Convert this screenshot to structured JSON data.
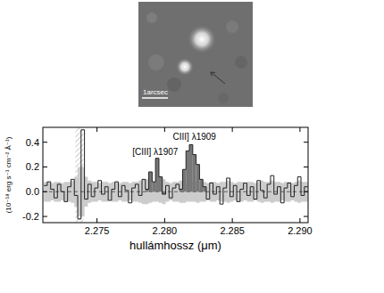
{
  "chart_data": {
    "type": "line",
    "image_label": "1arcsec",
    "x_label": "hullámhossz (μm)",
    "y_label": "(10⁻¹⁸ erg s⁻¹ cm⁻² Å⁻¹)",
    "xlim": [
      2.271,
      2.2906
    ],
    "ylim": [
      -0.25,
      0.52
    ],
    "xticks": [
      2.275,
      {
        "value": 2.28,
        "label": "2.280"
      },
      2.285,
      {
        "value": 2.29,
        "label": "2.290"
      }
    ],
    "yticks": [
      -0.2,
      {
        "value": 0,
        "label": "0.0"
      },
      0.2,
      0.4
    ],
    "line_style": "steps",
    "color": "#222222",
    "x": [
      2.2712,
      2.27145,
      2.2717,
      2.27195,
      2.2722,
      2.27245,
      2.2727,
      2.27295,
      2.2732,
      2.27345,
      2.2737,
      2.27395,
      2.2742,
      2.27445,
      2.2747,
      2.27495,
      2.2752,
      2.27545,
      2.2757,
      2.27595,
      2.2762,
      2.27645,
      2.2767,
      2.27695,
      2.2772,
      2.27745,
      2.2777,
      2.27795,
      2.2782,
      2.27845,
      2.2787,
      2.27895,
      2.2792,
      2.27945,
      2.2797,
      2.27995,
      2.2802,
      2.28045,
      2.2807,
      2.28095,
      2.2812,
      2.28145,
      2.2817,
      2.28195,
      2.2822,
      2.28245,
      2.2827,
      2.28295,
      2.2832,
      2.28345,
      2.2837,
      2.28395,
      2.2842,
      2.28445,
      2.2847,
      2.28495,
      2.2852,
      2.28545,
      2.2857,
      2.28595,
      2.2862,
      2.28645,
      2.2867,
      2.28695,
      2.2872,
      2.28745,
      2.2877,
      2.28795,
      2.2882,
      2.28845,
      2.2887,
      2.28895,
      2.2892,
      2.28945,
      2.2897,
      2.28995,
      2.2902,
      2.29045
    ],
    "values": [
      0.05,
      0.08,
      0.02,
      -0.05,
      0.06,
      0.0,
      -0.08,
      0.04,
      0.1,
      -0.03,
      -0.22,
      0.5,
      -0.06,
      0.06,
      -0.04,
      0.03,
      0.09,
      -0.02,
      0.04,
      -0.07,
      0.02,
      0.08,
      -0.04,
      0.05,
      0.01,
      -0.09,
      0.03,
      0.06,
      -0.03,
      0.1,
      0.02,
      0.16,
      0.08,
      0.27,
      0.12,
      -0.02,
      0.05,
      -0.05,
      0.03,
      0.06,
      0.02,
      0.18,
      0.33,
      0.38,
      0.3,
      0.22,
      0.1,
      0.04,
      -0.06,
      0.07,
      -0.02,
      0.04,
      -0.1,
      0.03,
      0.11,
      -0.04,
      0.05,
      -0.08,
      0.02,
      0.07,
      -0.03,
      0.04,
      -0.06,
      0.09,
      0.01,
      -0.05,
      0.06,
      0.13,
      -0.02,
      0.04,
      -0.09,
      0.03,
      0.07,
      -0.04,
      0.05,
      0.12,
      -0.03,
      0.04
    ],
    "noise": [
      0.08,
      0.08,
      0.07,
      0.08,
      0.08,
      0.07,
      0.08,
      0.08,
      0.09,
      0.12,
      0.2,
      0.2,
      0.12,
      0.09,
      0.08,
      0.08,
      0.07,
      0.08,
      0.08,
      0.07,
      0.08,
      0.08,
      0.07,
      0.08,
      0.08,
      0.07,
      0.08,
      0.08,
      0.09,
      0.1,
      0.1,
      0.09,
      0.08,
      0.08,
      0.09,
      0.1,
      0.08,
      0.07,
      0.08,
      0.08,
      0.09,
      0.09,
      0.08,
      0.08,
      0.08,
      0.09,
      0.08,
      0.08,
      0.07,
      0.08,
      0.08,
      0.07,
      0.08,
      0.08,
      0.09,
      0.08,
      0.07,
      0.08,
      0.08,
      0.07,
      0.08,
      0.08,
      0.07,
      0.08,
      0.09,
      0.08,
      0.08,
      0.09,
      0.08,
      0.08,
      0.07,
      0.08,
      0.08,
      0.07,
      0.08,
      0.09,
      0.08,
      0.08
    ],
    "line_regions": [
      [
        2.2787,
        2.27995
      ],
      [
        2.2812,
        2.28295
      ]
    ],
    "hatched": [
      2.2734,
      2.274
    ],
    "annotations": [
      {
        "text": "[CIII] λ1907",
        "x": 2.2793,
        "y": 0.3
      },
      {
        "text": "CIII] λ1909",
        "x": 2.2822,
        "y": 0.42
      }
    ]
  }
}
